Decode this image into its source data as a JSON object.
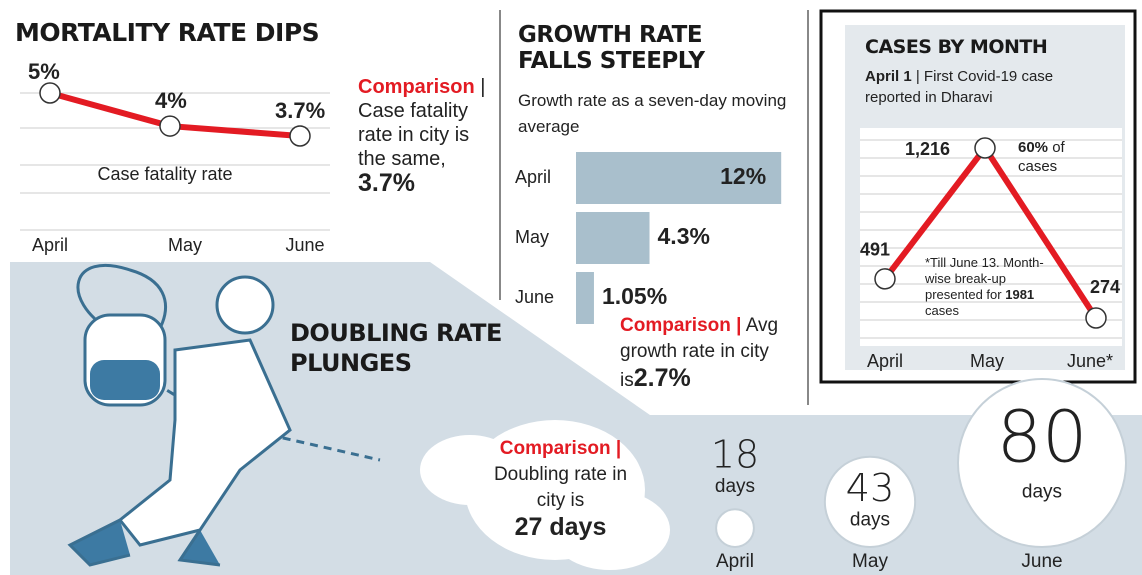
{
  "chart_data": [
    {
      "type": "line",
      "title": "MORTALITY RATE DIPS",
      "categories": [
        "April",
        "May",
        "June"
      ],
      "values": [
        5,
        4,
        3.7
      ],
      "value_labels": [
        "5%",
        "4%",
        "3.7%"
      ],
      "label": "Case fatality rate",
      "color": "#e31b23",
      "note": {
        "label": "Comparison",
        "text": "| Case fatality rate in city is the same,",
        "value": "3.7%"
      }
    },
    {
      "type": "hbar",
      "title": "GROWTH RATE FALLS STEEPLY",
      "subtitle": "Growth rate as a seven-day moving average",
      "categories": [
        "April",
        "May",
        "June"
      ],
      "values": [
        12,
        4.3,
        1.05
      ],
      "value_labels": [
        "12%",
        "4.3%",
        "1.05%"
      ],
      "color": "#a9bfcc",
      "note": {
        "label": "Comparison |",
        "text": "Avg growth rate in city is",
        "value": "2.7%"
      }
    },
    {
      "type": "line",
      "title": "CASES BY MONTH",
      "subtitle": {
        "date": "April 1",
        "text": "| First Covid-19 case reported in Dharavi"
      },
      "categories": [
        "April",
        "May",
        "June*"
      ],
      "values": [
        491,
        1216,
        274
      ],
      "value_labels": [
        "491",
        "1,216",
        "274"
      ],
      "color": "#e31b23",
      "callout": {
        "value": "60%",
        "text": "of cases"
      },
      "footnote": {
        "prefix": "*Till June 13. Month-wise break-up presented for",
        "value": "1981",
        "suffix": "cases"
      }
    },
    {
      "type": "bubble",
      "title": "DOUBLING RATE PLUNGES",
      "categories": [
        "April",
        "May",
        "June"
      ],
      "values": [
        18,
        43,
        80
      ],
      "unit": "days",
      "color": "#ffffff",
      "note": {
        "label": "Comparison |",
        "text": "Doubling rate in city is",
        "value": "27 days"
      }
    }
  ]
}
